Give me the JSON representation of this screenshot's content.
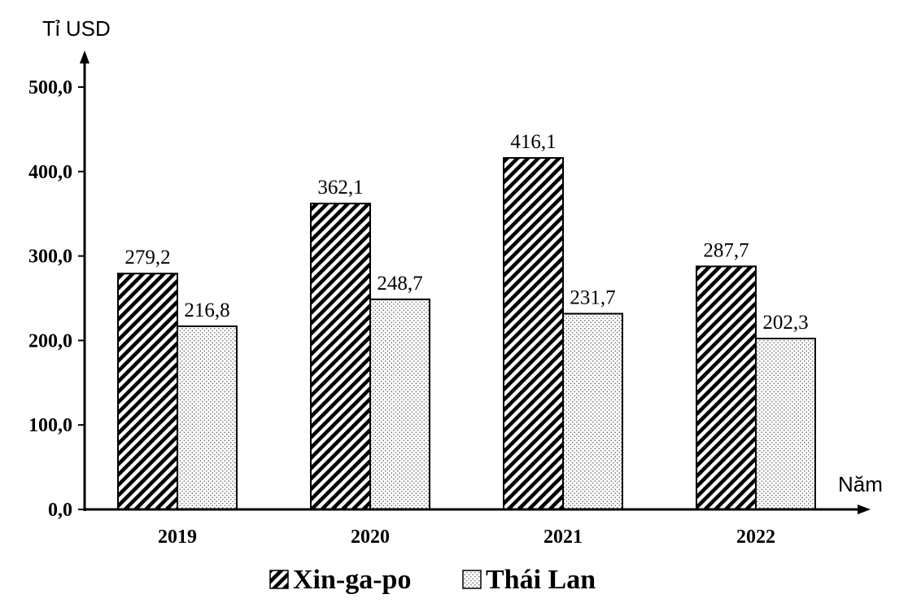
{
  "chart_data": {
    "type": "bar",
    "ylabel": "Tỉ USD",
    "xlabel": "Năm",
    "categories": [
      "2019",
      "2020",
      "2021",
      "2022"
    ],
    "ylim": [
      0,
      500
    ],
    "yticks": [
      "0,0",
      "100,0",
      "200,0",
      "300,0",
      "400,0",
      "500,0"
    ],
    "series": [
      {
        "name": "Xin-ga-po",
        "values": [
          279.2,
          362.1,
          416.1,
          287.7
        ],
        "labels": [
          "279,2",
          "362,1",
          "416,1",
          "287,7"
        ],
        "pattern": "diagonal-hatch"
      },
      {
        "name": "Thái Lan",
        "values": [
          216.8,
          248.7,
          231.7,
          202.3
        ],
        "labels": [
          "216,8",
          "248,7",
          "231,7",
          "202,3"
        ],
        "pattern": "dots"
      }
    ],
    "grid": false,
    "legend": "bottom-center",
    "colors": {
      "ink": "#000000",
      "background": "#ffffff"
    }
  }
}
